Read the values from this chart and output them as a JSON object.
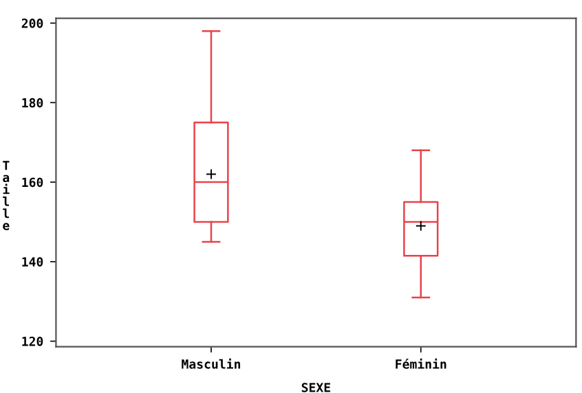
{
  "chart_data": {
    "type": "box",
    "xlabel": "SEXE",
    "ylabel": "Taille",
    "categories": [
      "Masculin",
      "Féminin"
    ],
    "boxes": [
      {
        "low": 145,
        "q1": 150,
        "median": 160,
        "q3": 175,
        "high": 198,
        "mean": 162
      },
      {
        "low": 131,
        "q1": 141.5,
        "median": 150,
        "q3": 155,
        "high": 168,
        "mean": 149
      }
    ],
    "color": "#e8424a",
    "ylim": [
      118.6,
      201.2
    ],
    "yticks": [
      120,
      140,
      160,
      180,
      200
    ],
    "grid": false
  }
}
